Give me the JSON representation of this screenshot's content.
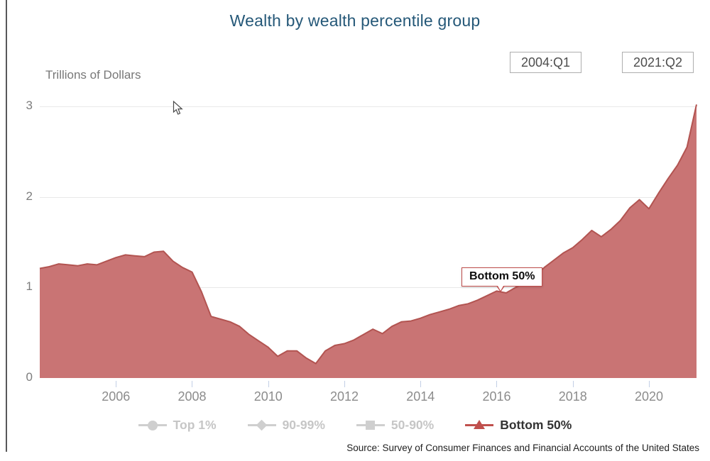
{
  "title": "Wealth by wealth percentile group",
  "range": {
    "start": "2004:Q1",
    "end": "2021:Q2"
  },
  "axis": {
    "y_title": "Trillions of Dollars"
  },
  "series_label": {
    "text": "Bottom 50%"
  },
  "legend": [
    {
      "label": "Top 1%",
      "marker": "circle",
      "active": false
    },
    {
      "label": "90-99%",
      "marker": "diamond",
      "active": false
    },
    {
      "label": "50-90%",
      "marker": "square",
      "active": false
    },
    {
      "label": "Bottom 50%",
      "marker": "triangle",
      "active": true
    }
  ],
  "source": "Source: Survey of Consumer Finances and Financial Accounts of the United States",
  "colors": {
    "title": "#255878",
    "area_fill": "#c97474",
    "area_stroke": "#b25451",
    "accent_red": "#c0504d",
    "inactive_gray": "#cfcfcf",
    "gridline": "#e8e8e8",
    "tick_blue": "#c2cfe6"
  },
  "chart_data": {
    "type": "area",
    "title": "Wealth by wealth percentile group",
    "series_name": "Bottom 50%",
    "ylabel": "Trillions of Dollars",
    "xlabel": "",
    "ylim": [
      0,
      3
    ],
    "y_ticks": [
      0,
      1,
      2,
      3
    ],
    "x_start": "2004:Q1",
    "x_end": "2021:Q2",
    "frequency": "quarterly",
    "x_tick_labels": [
      "2006",
      "2008",
      "2010",
      "2012",
      "2014",
      "2016",
      "2018",
      "2020"
    ],
    "grid": "horizontal",
    "legend_position": "bottom",
    "values": [
      1.21,
      1.23,
      1.26,
      1.25,
      1.24,
      1.26,
      1.25,
      1.29,
      1.33,
      1.36,
      1.35,
      1.34,
      1.39,
      1.4,
      1.29,
      1.22,
      1.17,
      0.95,
      0.68,
      0.65,
      0.62,
      0.57,
      0.48,
      0.41,
      0.34,
      0.24,
      0.3,
      0.3,
      0.22,
      0.16,
      0.3,
      0.36,
      0.38,
      0.42,
      0.48,
      0.54,
      0.49,
      0.57,
      0.62,
      0.63,
      0.66,
      0.7,
      0.73,
      0.76,
      0.8,
      0.82,
      0.86,
      0.91,
      0.96,
      0.94,
      1.0,
      1.05,
      1.12,
      1.22,
      1.3,
      1.38,
      1.44,
      1.53,
      1.63,
      1.56,
      1.64,
      1.74,
      1.88,
      1.97,
      1.87,
      2.04,
      2.2,
      2.35,
      2.55,
      3.02
    ]
  }
}
